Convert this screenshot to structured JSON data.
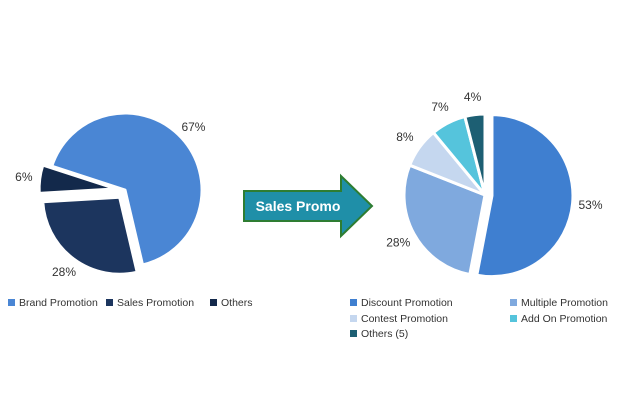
{
  "arrow": {
    "label": "Sales Promo",
    "fill_color": "#1f8fa8",
    "border_color": "#2e7d32"
  },
  "chart_data": [
    {
      "type": "pie",
      "slices": [
        {
          "name": "Brand Promotion",
          "value": 67,
          "label": "67%",
          "color": "#4a86d4",
          "exploded": false
        },
        {
          "name": "Sales Promotion",
          "value": 28,
          "label": "28%",
          "color": "#1c355e",
          "exploded": true
        },
        {
          "name": "Others",
          "value": 6,
          "label": "6%",
          "color": "#13294b",
          "exploded": true
        }
      ],
      "legend": [
        "Brand Promotion",
        "Sales Promotion",
        "Others"
      ],
      "legend_position": "bottom"
    },
    {
      "type": "pie",
      "slices": [
        {
          "name": "Discount Promotion",
          "value": 53,
          "label": "53%",
          "color": "#3f7fd0",
          "exploded": true
        },
        {
          "name": "Multiple Promotion",
          "value": 28,
          "label": "28%",
          "color": "#7fa9de",
          "exploded": false
        },
        {
          "name": "Contest Promotion",
          "value": 8,
          "label": "8%",
          "color": "#c5d7ef",
          "exploded": false
        },
        {
          "name": "Add On Promotion",
          "value": 7,
          "label": "7%",
          "color": "#55c4dc",
          "exploded": false
        },
        {
          "name": "Others (5)",
          "value": 4,
          "label": "4%",
          "color": "#1d5f73",
          "exploded": false
        }
      ],
      "legend": [
        "Discount Promotion",
        "Multiple Promotion",
        "Contest Promotion",
        "Add On Promotion",
        "Others (5)"
      ],
      "legend_position": "bottom"
    }
  ]
}
